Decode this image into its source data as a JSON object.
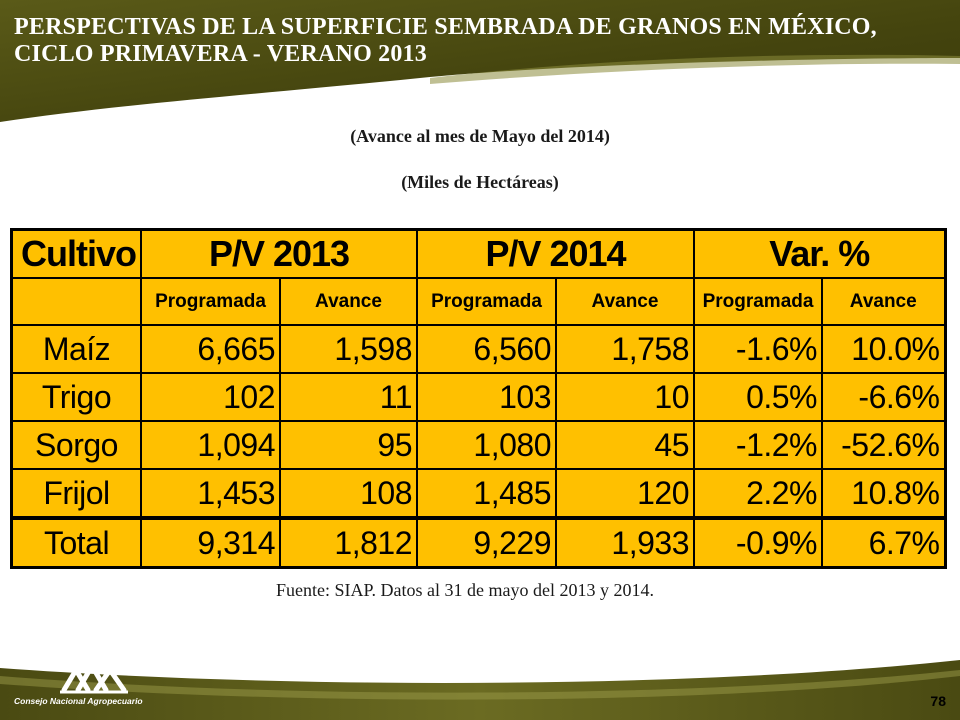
{
  "header": {
    "title_line1": "PERSPECTIVAS DE LA SUPERFICIE SEMBRADA DE GRANOS EN MÉXICO,",
    "title_line2": "CICLO PRIMAVERA - VERANO 2013"
  },
  "subtitles": {
    "line1": "(Avance al mes de Mayo del 2014)",
    "line2": "(Miles de Hectáreas)"
  },
  "table": {
    "col_crop": "Cultivo",
    "group1": "P/V 2013",
    "group2": "P/V 2014",
    "group3": "Var. %",
    "subheaders": [
      "Programada",
      "Avance",
      "Programada",
      "Avance",
      "Programada",
      "Avance"
    ],
    "rows": [
      {
        "crop": "Maíz",
        "values": [
          "6,665",
          "1,598",
          "6,560",
          "1,758",
          "-1.6%",
          "10.0%"
        ]
      },
      {
        "crop": "Trigo",
        "values": [
          "102",
          "11",
          "103",
          "10",
          "0.5%",
          "-6.6%"
        ]
      },
      {
        "crop": "Sorgo",
        "values": [
          "1,094",
          "95",
          "1,080",
          "45",
          "-1.2%",
          "-52.6%"
        ]
      },
      {
        "crop": "Frijol",
        "values": [
          "1,453",
          "108",
          "1,485",
          "120",
          "2.2%",
          "10.8%"
        ]
      },
      {
        "crop": "Total",
        "values": [
          "9,314",
          "1,812",
          "9,229",
          "1,933",
          "-0.9%",
          "6.7%"
        ]
      }
    ]
  },
  "source": "Fuente: SIAP. Datos al 31 de mayo del 2013 y 2014.",
  "footer": {
    "organization": "Consejo Nacional Agropecuario",
    "page_number": "78"
  },
  "colors": {
    "olive_dark": "#4a4a12",
    "olive_mid": "#7a7a2a",
    "table_fill": "#ffc000"
  }
}
